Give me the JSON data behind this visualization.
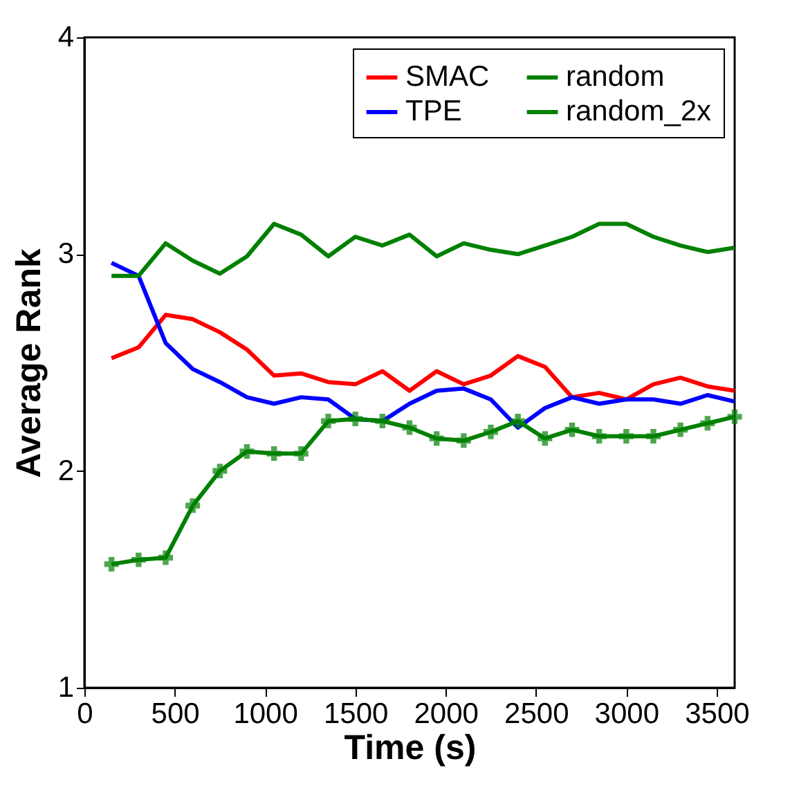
{
  "chart_data": {
    "type": "line",
    "xlabel": "Time (s)",
    "ylabel": "Average Rank",
    "x": [
      150,
      300,
      450,
      600,
      750,
      900,
      1050,
      1200,
      1350,
      1500,
      1650,
      1800,
      1950,
      2100,
      2250,
      2400,
      2550,
      2700,
      2850,
      3000,
      3150,
      3300,
      3450,
      3600
    ],
    "xlim": [
      0,
      3600
    ],
    "xticks": [
      0,
      500,
      1000,
      1500,
      2000,
      2500,
      3000,
      3500
    ],
    "ylim": [
      1,
      4
    ],
    "yticks": [
      1,
      2,
      3,
      4
    ],
    "grid": false,
    "legend": "top right",
    "series": [
      {
        "name": "SMAC",
        "color": "#ff0000",
        "marker": "none",
        "values": [
          2.52,
          2.57,
          2.72,
          2.7,
          2.64,
          2.56,
          2.44,
          2.45,
          2.41,
          2.4,
          2.46,
          2.37,
          2.46,
          2.4,
          2.44,
          2.53,
          2.48,
          2.34,
          2.36,
          2.33,
          2.4,
          2.43,
          2.39,
          2.37
        ]
      },
      {
        "name": "TPE",
        "color": "#0000ff",
        "marker": "none",
        "values": [
          2.96,
          2.9,
          2.59,
          2.47,
          2.41,
          2.34,
          2.31,
          2.34,
          2.33,
          2.24,
          2.23,
          2.31,
          2.37,
          2.38,
          2.33,
          2.2,
          2.29,
          2.34,
          2.31,
          2.33,
          2.33,
          2.31,
          2.35,
          2.32
        ]
      },
      {
        "name": "random",
        "color": "#008000",
        "marker": "none",
        "values": [
          2.9,
          2.9,
          3.05,
          2.97,
          2.91,
          2.99,
          3.14,
          3.09,
          2.99,
          3.08,
          3.04,
          3.09,
          2.99,
          3.05,
          3.02,
          3.0,
          3.04,
          3.08,
          3.14,
          3.14,
          3.08,
          3.04,
          3.01,
          3.03
        ]
      },
      {
        "name": "random_2x",
        "color": "#008000",
        "marker": "cross",
        "values": [
          1.57,
          1.59,
          1.6,
          1.84,
          2.0,
          2.09,
          2.08,
          2.08,
          2.23,
          2.24,
          2.23,
          2.2,
          2.15,
          2.14,
          2.18,
          2.23,
          2.15,
          2.19,
          2.16,
          2.16,
          2.16,
          2.19,
          2.22,
          2.25
        ]
      }
    ]
  }
}
